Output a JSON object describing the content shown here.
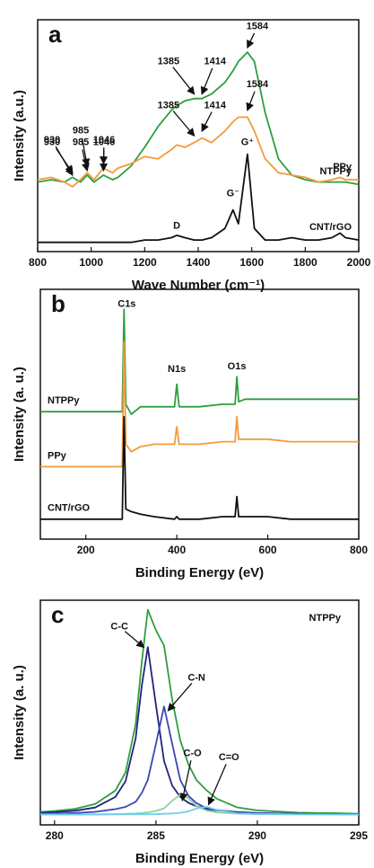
{
  "chart_data": [
    {
      "type": "line",
      "panel_label": "a",
      "xlabel": "Wave Number (cm⁻¹)",
      "ylabel": "Intensity (a.u.)",
      "xlim": [
        800,
        2000
      ],
      "xticks": [
        800,
        1000,
        1200,
        1400,
        1600,
        1800,
        2000
      ],
      "ylim": [
        0,
        100
      ],
      "legend": "right",
      "x": [
        800,
        850,
        900,
        930,
        960,
        985,
        1010,
        1046,
        1080,
        1100,
        1150,
        1200,
        1250,
        1300,
        1320,
        1350,
        1385,
        1414,
        1450,
        1500,
        1530,
        1550,
        1584,
        1610,
        1650,
        1700,
        1750,
        1800,
        1850,
        1900,
        1930,
        1950,
        2000
      ],
      "series": [
        {
          "name": "NTPPy",
          "color": "#2e9e3e",
          "values": [
            30,
            31,
            30,
            32,
            30,
            33,
            30,
            33,
            31,
            32,
            37,
            45,
            54,
            61,
            63,
            65,
            66,
            66,
            68,
            73,
            78,
            82,
            86,
            82,
            60,
            40,
            33,
            31,
            30,
            30,
            30,
            30,
            29
          ]
        },
        {
          "name": "PPy",
          "color": "#f39a3c",
          "values": [
            31,
            32,
            30,
            28,
            31,
            34,
            31,
            36,
            34,
            36,
            38,
            41,
            40,
            44,
            46,
            45,
            47,
            49,
            47,
            52,
            56,
            58,
            58,
            52,
            40,
            34,
            33,
            32,
            30,
            31,
            32,
            31,
            31
          ]
        },
        {
          "name": "CNT/rGO",
          "color": "#111111",
          "values": [
            4,
            4,
            4,
            4,
            4,
            4,
            4,
            4,
            4,
            4,
            4,
            5,
            5,
            6,
            7,
            6,
            5,
            5,
            6,
            10,
            18,
            12,
            42,
            10,
            5,
            5,
            6,
            5,
            5,
            6,
            8,
            6,
            5
          ]
        }
      ],
      "annotations": [
        {
          "text": "930",
          "x": 854,
          "y": 47,
          "arrow_to": [
            930,
            34
          ]
        },
        {
          "text": "985",
          "x": 961,
          "y": 47,
          "arrow_to": [
            985,
            35
          ]
        },
        {
          "text": "1046",
          "x": 1048,
          "y": 47,
          "arrow_to": [
            1046,
            35
          ]
        },
        {
          "text": "1385",
          "x": 1289,
          "y": 82,
          "arrow_to": [
            1385,
            68
          ]
        },
        {
          "text": "1414",
          "x": 1463,
          "y": 82,
          "arrow_to": [
            1414,
            68
          ]
        },
        {
          "text": "1584",
          "x": 1621,
          "y": 97,
          "arrow_to": [
            1584,
            88
          ]
        },
        {
          "text": "930",
          "x": 854,
          "y": 48,
          "arrow_to": [
            930,
            33
          ]
        },
        {
          "text": "985",
          "x": 961,
          "y": 52,
          "arrow_to": [
            985,
            37
          ]
        },
        {
          "text": "1046",
          "x": 1048,
          "y": 48,
          "arrow_to": [
            1046,
            38
          ]
        },
        {
          "text": "1385",
          "x": 1289,
          "y": 63,
          "arrow_to": [
            1385,
            50
          ]
        },
        {
          "text": "1414",
          "x": 1463,
          "y": 63,
          "arrow_to": [
            1414,
            52
          ]
        },
        {
          "text": "1584",
          "x": 1621,
          "y": 72,
          "arrow_to": [
            1584,
            61
          ]
        },
        {
          "text": "D",
          "x": 1320,
          "y": 11
        },
        {
          "text": "G⁻",
          "x": 1530,
          "y": 25
        },
        {
          "text": "G⁺",
          "x": 1584,
          "y": 47
        }
      ]
    },
    {
      "type": "line",
      "panel_label": "b",
      "xlabel": "Binding Energy (eV)",
      "ylabel": "Intensity (a. u.)",
      "xlim": [
        100,
        800
      ],
      "xticks": [
        200,
        400,
        600,
        800
      ],
      "ylim": [
        0,
        100
      ],
      "legend": "left",
      "x": [
        100,
        150,
        200,
        250,
        280,
        284,
        288,
        300,
        320,
        350,
        395,
        400,
        405,
        450,
        500,
        528,
        532,
        536,
        550,
        600,
        650,
        700,
        750,
        800
      ],
      "series": [
        {
          "name": "NTPPy",
          "color": "#2e9e3e",
          "values": [
            51,
            51,
            51,
            51,
            51,
            92,
            54,
            50,
            53,
            53,
            53,
            62,
            53,
            53,
            54,
            54,
            65,
            55,
            56,
            56,
            56,
            56,
            56,
            56
          ]
        },
        {
          "name": "PPy",
          "color": "#f39a3c",
          "values": [
            29,
            29,
            29,
            29,
            29,
            79,
            38,
            35,
            37,
            38,
            38,
            45,
            38,
            38,
            39,
            39,
            49,
            40,
            40,
            40,
            39,
            39,
            39,
            39
          ]
        },
        {
          "name": "CNT/rGO",
          "color": "#111111",
          "values": [
            8,
            8,
            8,
            8,
            8,
            49,
            12,
            11,
            10,
            9,
            8,
            9,
            8,
            8,
            9,
            9,
            17,
            9,
            9,
            9,
            8,
            8,
            8,
            8
          ]
        }
      ],
      "annotations": [
        {
          "text": "C1s",
          "x": 290,
          "y": 94
        },
        {
          "text": "N1s",
          "x": 400,
          "y": 68
        },
        {
          "text": "O1s",
          "x": 532,
          "y": 69
        }
      ]
    },
    {
      "type": "line",
      "panel_label": "c",
      "xlabel": "Binding Energy (eV)",
      "ylabel": "Intensity (a. u.)",
      "xlim": [
        279.3,
        295
      ],
      "xticks": [
        280,
        285,
        290,
        295
      ],
      "ylim": [
        0,
        110
      ],
      "legend": "top-right",
      "x": [
        279.3,
        280,
        281,
        282,
        283,
        283.5,
        284,
        284.3,
        284.6,
        285,
        285.4,
        285.8,
        286.2,
        286.6,
        287,
        287.5,
        288,
        289,
        290,
        291,
        292,
        293,
        294,
        295
      ],
      "series": [
        {
          "name": "NTPPy",
          "color": "#2e9e3e",
          "values": [
            6.4,
            6.8,
            7.8,
            10.2,
            16.8,
            25.7,
            49.5,
            79.8,
            105.3,
            95.3,
            87.8,
            61.3,
            41.3,
            29.6,
            21.9,
            16.9,
            12.8,
            8.6,
            7.1,
            6.5,
            6,
            5.8,
            5.7,
            5.4
          ]
        },
        {
          "color": "#23237a",
          "values": [
            5.9,
            6.2,
            6.9,
            8.5,
            13.7,
            21.4,
            42.5,
            68.2,
            87,
            58.6,
            31.3,
            19.2,
            13.7,
            10.8,
            9.1,
            7.8,
            7.1,
            6.3,
            5.8,
            5.6,
            5.4,
            5.3,
            5.3,
            5.2
          ]
        },
        {
          "color": "#3c46b4",
          "values": [
            5.4,
            5.5,
            5.8,
            6.4,
            7.7,
            8.8,
            11.3,
            15.6,
            22,
            39.7,
            58,
            39.7,
            22,
            14.2,
            10.6,
            8.2,
            7.3,
            6.2,
            5.7,
            5.5,
            5.4,
            5.3,
            5.2,
            5.2
          ]
        },
        {
          "color": "#8ed39a",
          "values": [
            5.1,
            5.1,
            5.1,
            5.2,
            5.3,
            5.4,
            5.6,
            5.8,
            6.1,
            6.8,
            8.1,
            11.8,
            14.7,
            13,
            9.2,
            7,
            6.1,
            5.5,
            5.3,
            5.2,
            5.1,
            5.1,
            5.1,
            5
          ]
        },
        {
          "color": "#6ecff0",
          "values": [
            5,
            5,
            5,
            5,
            5.1,
            5.1,
            5.1,
            5.1,
            5.2,
            5.2,
            5.4,
            5.6,
            5.9,
            6.6,
            8,
            8.9,
            7.3,
            5.6,
            5.3,
            5.2,
            5.1,
            5.1,
            5.1,
            5
          ]
        }
      ],
      "annotations": [
        {
          "text": "C-C",
          "x": 283.2,
          "y": 97,
          "arrow_to": [
            284.4,
            87
          ]
        },
        {
          "text": "C-N",
          "x": 287,
          "y": 72,
          "arrow_to": [
            285.6,
            56
          ]
        },
        {
          "text": "C-O",
          "x": 286.8,
          "y": 35,
          "arrow_to": [
            286.3,
            12
          ]
        },
        {
          "text": "C=O",
          "x": 288.6,
          "y": 33,
          "arrow_to": [
            287.6,
            10
          ]
        }
      ]
    }
  ]
}
